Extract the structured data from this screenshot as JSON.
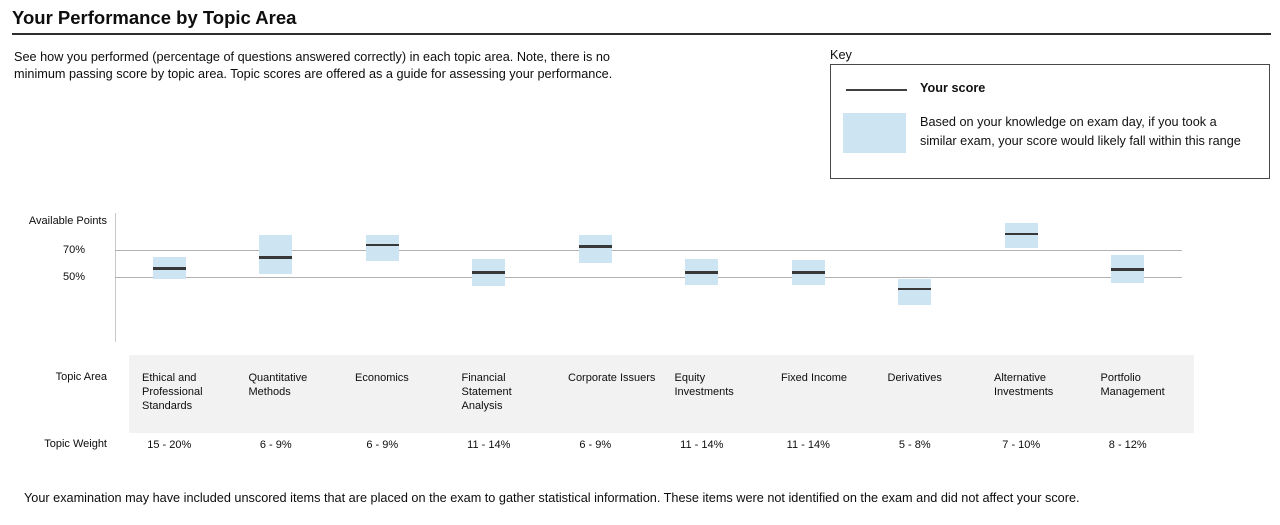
{
  "page": {
    "title": "Your Performance by Topic Area",
    "intro": "See how you performed (percentage of questions answered correctly) in each topic area. Note, there is no\nminimum passing score by topic area. Topic scores are offered as a guide for assessing your performance.",
    "footnote": "Your examination may have included unscored items that are placed on the exam to gather statistical information. These items were not identified on the exam and did not affect your score."
  },
  "key": {
    "heading": "Key",
    "score_label": "Your score",
    "range_label": "Based on your knowledge on exam day, if you took a\nsimilar exam, your score would likely fall within this range"
  },
  "chart_data": {
    "type": "range-box",
    "ylabel": "Available Points",
    "ytick_labels": [
      "70%",
      "50%"
    ],
    "ytick_values": [
      70,
      50
    ],
    "ylim": [
      0,
      100
    ],
    "grid": true,
    "row_headers": {
      "topic_area": "Topic Area",
      "topic_weight": "Topic Weight"
    },
    "colors": {
      "range_fill": "#cde4f3",
      "score_line": "#383838",
      "gridline": "#b2b2b2",
      "band_bg": "#f2f2f2"
    },
    "topics": [
      {
        "label": "Ethical and\nProfessional\nStandards",
        "weight": "15 - 20%",
        "score": 57,
        "range_low": 49,
        "range_high": 65
      },
      {
        "label": "Quantitative\nMethods",
        "weight": "6 - 9%",
        "score": 65,
        "range_low": 53,
        "range_high": 81
      },
      {
        "label": "Economics",
        "weight": "6 - 9%",
        "score": 74,
        "range_low": 62,
        "range_high": 81
      },
      {
        "label": "Financial\nStatement\nAnalysis",
        "weight": "11 - 14%",
        "score": 54,
        "range_low": 44,
        "range_high": 64
      },
      {
        "label": "Corporate Issuers",
        "weight": "6 - 9%",
        "score": 73,
        "range_low": 61,
        "range_high": 81
      },
      {
        "label": "Equity\nInvestments",
        "weight": "11 - 14%",
        "score": 54,
        "range_low": 45,
        "range_high": 64
      },
      {
        "label": "Fixed Income",
        "weight": "11 - 14%",
        "score": 54,
        "range_low": 45,
        "range_high": 63
      },
      {
        "label": "Derivatives",
        "weight": "5 - 8%",
        "score": 42,
        "range_low": 30,
        "range_high": 49
      },
      {
        "label": "Alternative\nInvestments",
        "weight": "7 - 10%",
        "score": 82,
        "range_low": 72,
        "range_high": 90
      },
      {
        "label": "Portfolio\nManagement",
        "weight": "8 - 12%",
        "score": 56,
        "range_low": 46,
        "range_high": 67
      }
    ]
  }
}
